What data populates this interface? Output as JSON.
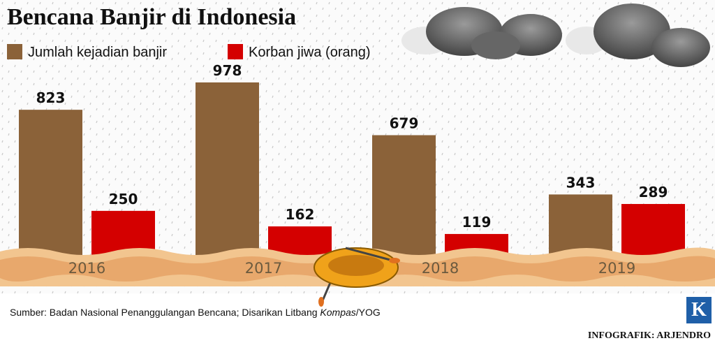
{
  "chart_data": {
    "type": "bar",
    "title": "Bencana Banjir di Indonesia",
    "categories": [
      "2016",
      "2017",
      "2018",
      "2019"
    ],
    "series": [
      {
        "name": "Jumlah kejadian banjir",
        "color": "#8b6239",
        "values": [
          823,
          978,
          679,
          343
        ]
      },
      {
        "name": "Korban jiwa (orang)",
        "color": "#d40000",
        "values": [
          250,
          162,
          119,
          289
        ]
      }
    ],
    "source": {
      "text": "Sumber: Badan Nasional Penanggulangan Bencana; Disarikan Litbang",
      "italic": "Kompas",
      "suffix": "/YOG"
    },
    "credit": "INFOGRAFIK: ARJENDRO",
    "logo": "K"
  }
}
